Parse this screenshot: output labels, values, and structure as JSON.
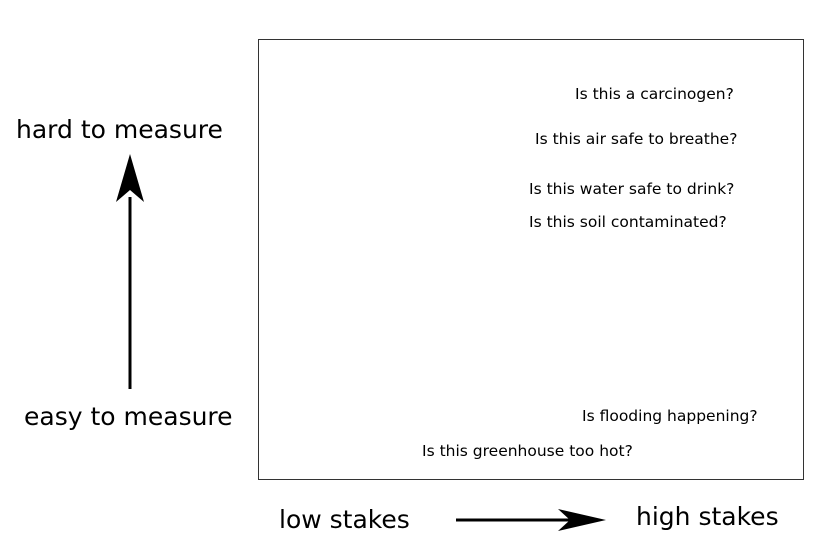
{
  "axes": {
    "y_top_label": "hard to measure",
    "y_bottom_label": "easy to measure",
    "x_left_label": "low stakes",
    "x_right_label": "high stakes"
  },
  "questions": [
    "Is this a carcinogen?",
    "Is this air safe to breathe?",
    "Is this water safe to drink?",
    "Is this soil contaminated?",
    "Is flooding happening?",
    "Is this greenhouse too hot?"
  ],
  "colors": {
    "text": "#000000",
    "frame": "#333333",
    "background": "#ffffff"
  }
}
